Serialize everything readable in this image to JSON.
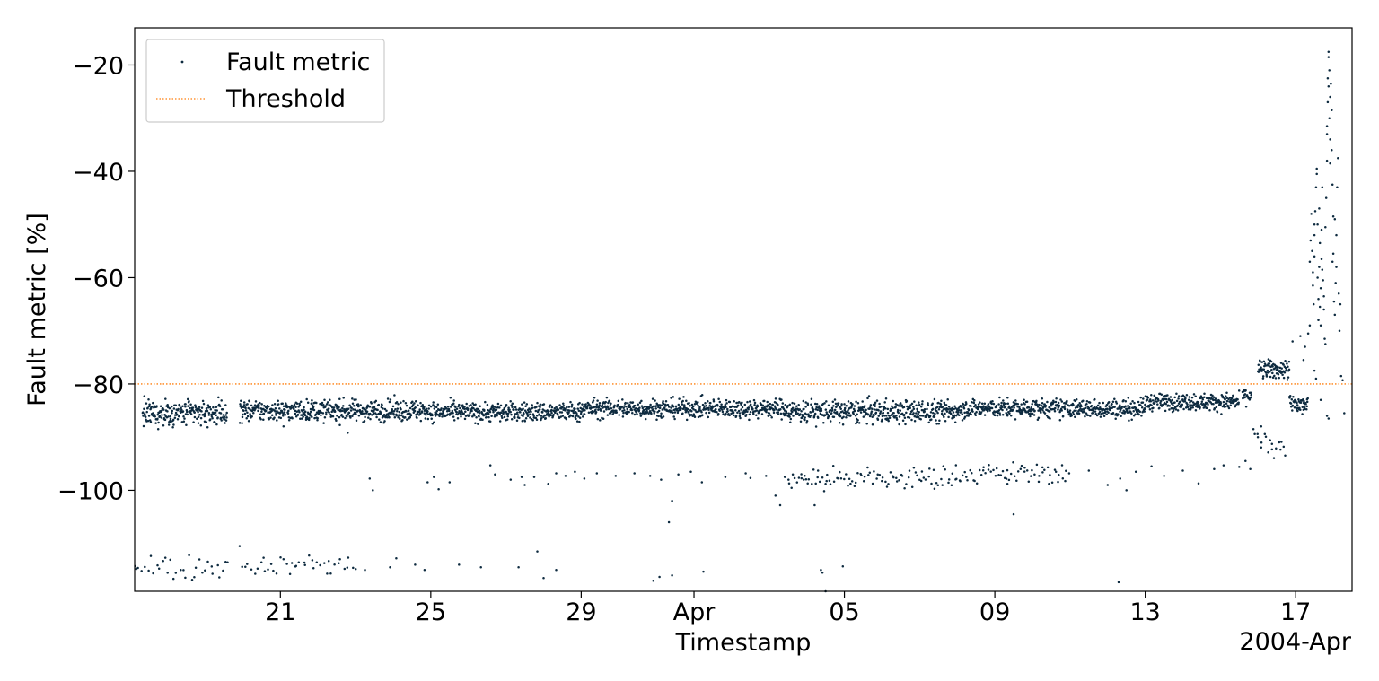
{
  "chart_data": {
    "type": "scatter",
    "xlabel": "Timestamp",
    "ylabel": "Fault metric [%]",
    "x_offset_label": "2004-Apr",
    "xlim": [
      "2004-03-17T03:00",
      "2004-04-18T12:00"
    ],
    "ylim": [
      -119,
      -13
    ],
    "x_ticks": [
      {
        "date": "2004-03-21",
        "label": "21"
      },
      {
        "date": "2004-03-25",
        "label": "25"
      },
      {
        "date": "2004-03-29",
        "label": "29"
      },
      {
        "date": "2004-04-01",
        "label": "Apr"
      },
      {
        "date": "2004-04-05",
        "label": "05"
      },
      {
        "date": "2004-04-09",
        "label": "09"
      },
      {
        "date": "2004-04-13",
        "label": "13"
      },
      {
        "date": "2004-04-17",
        "label": "17"
      }
    ],
    "y_ticks": [
      {
        "value": -20,
        "label": "−20"
      },
      {
        "value": -40,
        "label": "−40"
      },
      {
        "value": -60,
        "label": "−60"
      },
      {
        "value": -80,
        "label": "−80"
      },
      {
        "value": -100,
        "label": "−100"
      }
    ],
    "grid": false,
    "legend": {
      "position": "top-left",
      "entries": [
        {
          "label": "Fault metric",
          "marker": "dot",
          "color": "#0d2a3f"
        },
        {
          "label": "Threshold",
          "marker": "dotted-line",
          "color": "#ff7f0e"
        }
      ]
    },
    "threshold": {
      "value": -80,
      "color": "#ff7f0e",
      "style": "dotted"
    },
    "series": [
      {
        "name": "Fault metric",
        "color": "#0d2a3f",
        "segments": [
          {
            "start": "2004-03-17T08:00",
            "end": "2004-03-19T14:00",
            "mean": -85.5,
            "spread": 1.2
          },
          {
            "start": "2004-03-19T22:00",
            "end": "2004-03-25T00:00",
            "mean": -85.0,
            "spread": 1.0
          },
          {
            "start": "2004-03-25T00:00",
            "end": "2004-03-29T00:00",
            "mean": -85.3,
            "spread": 0.9
          },
          {
            "start": "2004-03-29T00:00",
            "end": "2004-04-03T12:00",
            "mean": -84.6,
            "spread": 0.9
          },
          {
            "start": "2004-04-03T12:00",
            "end": "2004-04-08T00:00",
            "mean": -85.2,
            "spread": 1.1
          },
          {
            "start": "2004-04-08T00:00",
            "end": "2004-04-13T00:00",
            "mean": -84.6,
            "spread": 0.9
          },
          {
            "start": "2004-04-13T00:00",
            "end": "2004-04-15T12:00",
            "mean": -83.4,
            "spread": 0.8
          },
          {
            "start": "2004-04-15T14:00",
            "end": "2004-04-15T20:00",
            "mean": -82.2,
            "spread": 0.8
          },
          {
            "start": "2004-04-16T00:00",
            "end": "2004-04-16T20:00",
            "mean": -77.3,
            "spread": 0.9
          },
          {
            "start": "2004-04-16T20:00",
            "end": "2004-04-17T08:00",
            "mean": -84.0,
            "spread": 1.2
          },
          {
            "start": "2004-04-15T22:00",
            "end": "2004-04-16T18:00",
            "mean": -91.0,
            "spread": 1.8
          },
          {
            "start": "2004-03-17T04:00",
            "end": "2004-03-19T16:00",
            "mean": -114.3,
            "spread": 1.2
          },
          {
            "start": "2004-03-20T00:00",
            "end": "2004-03-23T00:00",
            "mean": -114.0,
            "spread": 1.0
          },
          {
            "start": "2004-04-03T12:00",
            "end": "2004-04-08T00:00",
            "mean": -97.8,
            "spread": 1.2
          },
          {
            "start": "2004-04-08T00:00",
            "end": "2004-04-11T00:00",
            "mean": -96.8,
            "spread": 1.0
          }
        ],
        "scattered_points": [
          [
            "2004-03-23T09:00",
            -97.8
          ],
          [
            "2004-03-23T11:00",
            -100.0
          ],
          [
            "2004-03-24T22:00",
            -98.5
          ],
          [
            "2004-03-25T02:00",
            -97.5
          ],
          [
            "2004-03-25T05:00",
            -99.8
          ],
          [
            "2004-03-25T12:00",
            -98.5
          ],
          [
            "2004-03-26T14:00",
            -95.3
          ],
          [
            "2004-03-26T17:00",
            -97.0
          ],
          [
            "2004-03-27T03:00",
            -98.0
          ],
          [
            "2004-03-27T10:00",
            -97.5
          ],
          [
            "2004-03-27T12:00",
            -99.0
          ],
          [
            "2004-03-27T18:00",
            -97.5
          ],
          [
            "2004-03-28T03:00",
            -98.8
          ],
          [
            "2004-03-28T08:00",
            -96.8
          ],
          [
            "2004-03-28T14:00",
            -97.3
          ],
          [
            "2004-03-28T20:00",
            -96.5
          ],
          [
            "2004-03-29T02:00",
            -97.8
          ],
          [
            "2004-03-29T10:00",
            -96.8
          ],
          [
            "2004-03-29T22:00",
            -97.3
          ],
          [
            "2004-03-30T10:00",
            -96.8
          ],
          [
            "2004-03-30T20:00",
            -97.3
          ],
          [
            "2004-03-31T03:00",
            -98.0
          ],
          [
            "2004-03-31T08:00",
            -106.0
          ],
          [
            "2004-03-31T10:00",
            -102.0
          ],
          [
            "2004-03-31T14:00",
            -97.0
          ],
          [
            "2004-03-31T22:00",
            -96.5
          ],
          [
            "2004-04-01T05:00",
            -98.5
          ],
          [
            "2004-04-01T20:00",
            -97.5
          ],
          [
            "2004-04-02T09:00",
            -96.8
          ],
          [
            "2004-04-02T12:00",
            -97.7
          ],
          [
            "2004-04-02T22:00",
            -97.3
          ],
          [
            "2004-04-03T04:00",
            -101.0
          ],
          [
            "2004-04-03T07:00",
            -102.8
          ],
          [
            "2004-04-03T10:00",
            -97.5
          ],
          [
            "2004-04-03T22:00",
            -98.0
          ],
          [
            "2004-04-04T05:00",
            -102.8
          ],
          [
            "2004-04-04T12:00",
            -98.8
          ],
          [
            "2004-04-09T08:00",
            -98.8
          ],
          [
            "2004-04-09T12:00",
            -104.5
          ],
          [
            "2004-04-11T12:00",
            -96.3
          ],
          [
            "2004-04-12T00:00",
            -99.0
          ],
          [
            "2004-04-12T08:00",
            -97.8
          ],
          [
            "2004-04-12T12:00",
            -100.0
          ],
          [
            "2004-04-12T18:00",
            -96.5
          ],
          [
            "2004-04-13T04:00",
            -95.5
          ],
          [
            "2004-04-13T12:00",
            -97.3
          ],
          [
            "2004-04-14T00:00",
            -96.3
          ],
          [
            "2004-04-14T10:00",
            -98.7
          ],
          [
            "2004-04-14T20:00",
            -96.0
          ],
          [
            "2004-04-15T02:00",
            -95.3
          ],
          [
            "2004-04-15T12:00",
            -95.6
          ],
          [
            "2004-03-19T10:00",
            -86.4
          ],
          [
            "2004-03-17T18:00",
            -88.5
          ],
          [
            "2004-03-21T02:00",
            -88.0
          ],
          [
            "2004-03-22T19:00",
            -89.2
          ],
          [
            "2004-03-23T06:00",
            -115.0
          ],
          [
            "2004-03-23T22:00",
            -114.5
          ],
          [
            "2004-03-24T02:00",
            -112.8
          ],
          [
            "2004-03-24T14:00",
            -114.0
          ],
          [
            "2004-03-24T20:00",
            -115.0
          ],
          [
            "2004-03-25T18:00",
            -114.0
          ],
          [
            "2004-03-26T08:00",
            -114.5
          ],
          [
            "2004-03-27T08:00",
            -114.5
          ],
          [
            "2004-03-27T20:00",
            -111.5
          ],
          [
            "2004-03-28T00:00",
            -116.5
          ],
          [
            "2004-03-28T08:00",
            -115.0
          ],
          [
            "2004-03-30T22:00",
            -117.0
          ],
          [
            "2004-03-31T02:00",
            -116.3
          ],
          [
            "2004-03-31T10:00",
            -116.0
          ],
          [
            "2004-04-01T06:00",
            -115.3
          ],
          [
            "2004-04-04T09:00",
            -115.0
          ],
          [
            "2004-04-04T10:00",
            -115.5
          ],
          [
            "2004-04-04T12:00",
            -119.0
          ],
          [
            "2004-04-04T23:00",
            -114.3
          ],
          [
            "2004-04-12T07:00",
            -117.3
          ],
          [
            "2004-03-17T04:00",
            -114.8
          ],
          [
            "2004-03-19T22:00",
            -110.5
          ],
          [
            "2004-04-15T16:00",
            -94.5
          ],
          [
            "2004-04-15T19:00",
            -96.0
          ],
          [
            "2004-04-15T21:00",
            -88.5
          ],
          [
            "2004-04-16T02:00",
            -88.0
          ],
          [
            "2004-04-16T22:00",
            -72.0
          ],
          [
            "2004-04-17T03:00",
            -71.0
          ],
          [
            "2004-04-17T05:00",
            -75.5
          ],
          [
            "2004-04-17T06:00",
            -73.0
          ],
          [
            "2004-04-17T08:00",
            -70.5
          ],
          [
            "2004-04-17T09:00",
            -69.0
          ],
          [
            "2004-04-17T12:00",
            -77.5
          ],
          [
            "2004-04-17T13:00",
            -79.0
          ],
          [
            "2004-04-17T16:00",
            -83.0
          ],
          [
            "2004-04-17T20:00",
            -86.0
          ],
          [
            "2004-04-17T21:00",
            -86.5
          ],
          [
            "2004-04-18T07:00",
            -85.5
          ],
          [
            "2004-04-18T05:00",
            -78.5
          ],
          [
            "2004-04-18T06:00",
            -79.3
          ]
        ],
        "tail_cloud": {
          "start": "2004-04-17T09:00",
          "end": "2004-04-18T05:00",
          "points": [
            [
              "2004-04-17T09:00",
              -57.0
            ],
            [
              "2004-04-17T09:30",
              -53.0
            ],
            [
              "2004-04-17T10:00",
              -48.0
            ],
            [
              "2004-04-17T10:30",
              -55.0
            ],
            [
              "2004-04-17T11:00",
              -59.0
            ],
            [
              "2004-04-17T11:00",
              -61.5
            ],
            [
              "2004-04-17T11:30",
              -65.0
            ],
            [
              "2004-04-17T12:00",
              -56.0
            ],
            [
              "2004-04-17T12:00",
              -52.0
            ],
            [
              "2004-04-17T12:30",
              -47.5
            ],
            [
              "2004-04-17T13:00",
              -43.0
            ],
            [
              "2004-04-17T13:30",
              -39.5
            ],
            [
              "2004-04-17T13:30",
              -40.5
            ],
            [
              "2004-04-17T14:00",
              -50.0
            ],
            [
              "2004-04-17T14:00",
              -60.0
            ],
            [
              "2004-04-17T14:30",
              -64.0
            ],
            [
              "2004-04-17T14:30",
              -68.0
            ],
            [
              "2004-04-17T15:00",
              -58.0
            ],
            [
              "2004-04-17T15:30",
              -53.5
            ],
            [
              "2004-04-17T15:30",
              -65.5
            ],
            [
              "2004-04-17T16:00",
              -62.0
            ],
            [
              "2004-04-17T16:30",
              -56.5
            ],
            [
              "2004-04-17T16:30",
              -51.0
            ],
            [
              "2004-04-17T17:00",
              -43.0
            ],
            [
              "2004-04-17T17:00",
              -58.5
            ],
            [
              "2004-04-17T17:30",
              -60.5
            ],
            [
              "2004-04-17T18:00",
              -63.5
            ],
            [
              "2004-04-17T18:00",
              -66.0
            ],
            [
              "2004-04-17T18:30",
              -71.5
            ],
            [
              "2004-04-17T19:00",
              -72.5
            ],
            [
              "2004-04-17T19:00",
              -50.5
            ],
            [
              "2004-04-17T19:30",
              -45.0
            ],
            [
              "2004-04-17T20:00",
              -38.0
            ],
            [
              "2004-04-17T20:00",
              -33.0
            ],
            [
              "2004-04-17T20:30",
              -27.0
            ],
            [
              "2004-04-17T20:30",
              -22.5
            ],
            [
              "2004-04-17T21:00",
              -18.5
            ],
            [
              "2004-04-17T21:00",
              -17.5
            ],
            [
              "2004-04-17T21:30",
              -21.0
            ],
            [
              "2004-04-17T21:30",
              -30.0
            ],
            [
              "2004-04-17T22:00",
              -34.0
            ],
            [
              "2004-04-17T22:00",
              -26.0
            ],
            [
              "2004-04-17T22:30",
              -23.5
            ],
            [
              "2004-04-17T23:00",
              -28.5
            ],
            [
              "2004-04-17T23:00",
              -36.0
            ],
            [
              "2004-04-17T23:30",
              -42.5
            ],
            [
              "2004-04-18T00:00",
              -48.5
            ],
            [
              "2004-04-18T00:00",
              -55.5
            ],
            [
              "2004-04-18T00:30",
              -64.5
            ],
            [
              "2004-04-18T01:00",
              -67.0
            ],
            [
              "2004-04-18T01:30",
              -61.0
            ],
            [
              "2004-04-18T02:00",
              -52.0
            ],
            [
              "2004-04-18T02:30",
              -43.0
            ],
            [
              "2004-04-18T03:00",
              -37.5
            ],
            [
              "2004-04-18T03:30",
              -63.0
            ],
            [
              "2004-04-18T04:00",
              -70.0
            ],
            [
              "2004-04-18T04:30",
              -65.0
            ],
            [
              "2004-04-17T20:00",
              -31.5
            ],
            [
              "2004-04-17T21:00",
              -24.0
            ],
            [
              "2004-04-17T22:00",
              -38.5
            ],
            [
              "2004-04-17T12:00",
              -50.0
            ],
            [
              "2004-04-17T15:00",
              -47.0
            ],
            [
              "2004-04-17T16:00",
              -69.0
            ],
            [
              "2004-04-17T23:30",
              -57.0
            ],
            [
              "2004-04-18T01:00",
              -49.0
            ],
            [
              "2004-04-18T02:00",
              -58.0
            ]
          ]
        }
      }
    ]
  }
}
